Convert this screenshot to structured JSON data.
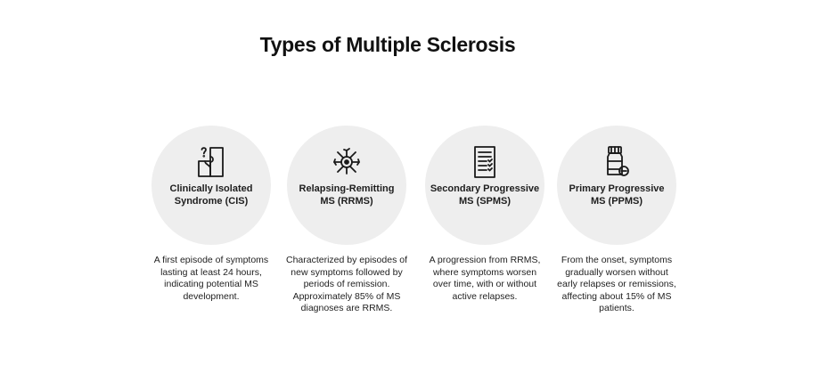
{
  "title": "Types of Multiple Sclerosis",
  "types": [
    {
      "icon": "puzzle-question-icon",
      "name": "Clinically Isolated\nSyndrome (CIS)",
      "description": "A first episode of symptoms\nlasting at least 24 hours,\nindicating potential MS\ndevelopment."
    },
    {
      "icon": "nerve-cell-icon",
      "name": "Relapsing-Remitting\nMS (RRMS)",
      "description": "Characterized by episodes of\nnew symptoms followed by\nperiods of remission.\nApproximately 85% of MS\ndiagnoses are RRMS."
    },
    {
      "icon": "checklist-document-icon",
      "name": "Secondary Progressive\nMS (SPMS)",
      "description": "A progression from RRMS,\nwhere symptoms worsen\nover time, with or without\nactive relapses."
    },
    {
      "icon": "medicine-bottle-icon",
      "name": "Primary Progressive\nMS (PPMS)",
      "description": "From the onset, symptoms\ngradually worsen without\nearly relapses or remissions,\naffecting about 15% of MS\npatients."
    }
  ],
  "colors": {
    "circle_background": "#eeeeee",
    "text": "#1e1e1e",
    "icon_stroke": "#1a1a1a"
  }
}
